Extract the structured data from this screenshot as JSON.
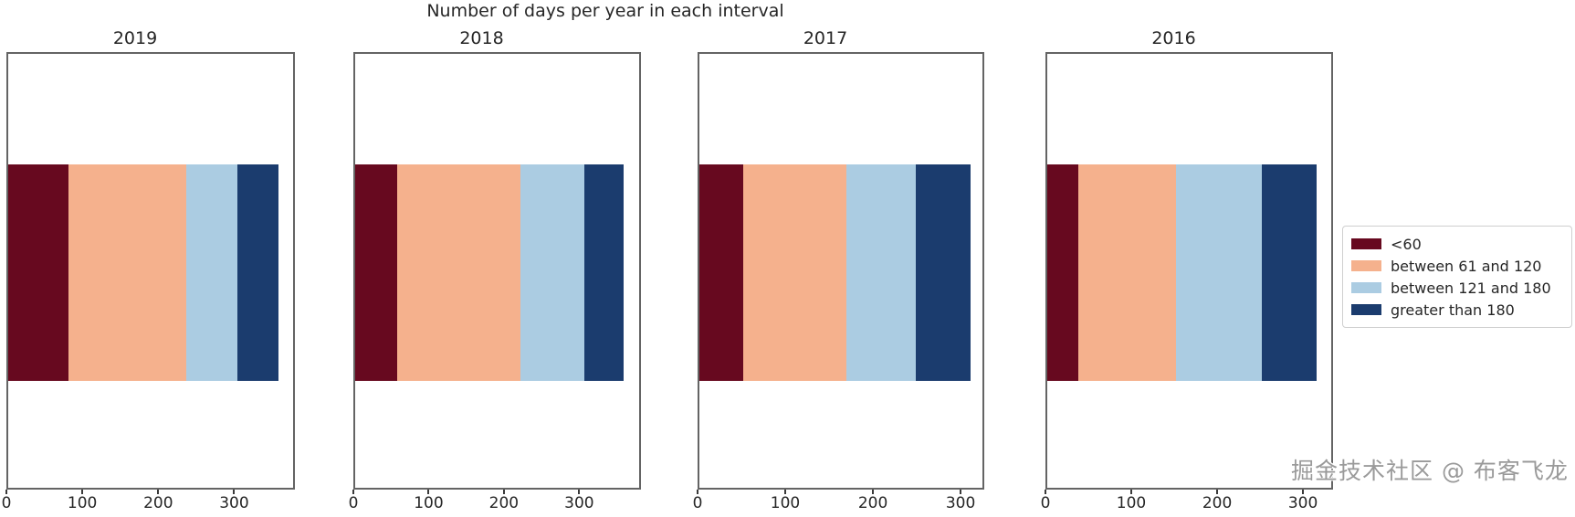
{
  "title": "Number of days per year in each interval",
  "watermark": "掘金技术社区 @ 布客飞龙",
  "colors": {
    "lt60": "#67091f",
    "between_61_120": "#f5b18d",
    "between_121_180": "#abcce2",
    "greater_180": "#1b3c6e",
    "frame": "#646464",
    "text": "#262626",
    "watermark_gray": "#9a9a9a"
  },
  "chart_data": {
    "type": "bar",
    "orientation": "horizontal",
    "stacked": true,
    "grid": false,
    "title": "Number of days per year in each interval",
    "xlabel": "",
    "ylabel": "",
    "legend_position": "right",
    "series_labels": [
      "<60",
      "between 61 and 120",
      "between 121 and 180",
      "greater than 180"
    ],
    "series_colors": [
      "#67091f",
      "#f5b18d",
      "#abcce2",
      "#1b3c6e"
    ],
    "subplots": [
      {
        "title": "2019",
        "xticks": [
          0,
          100,
          200,
          300
        ],
        "xmax": 380,
        "values": [
          80,
          158,
          68,
          54
        ],
        "total": 360
      },
      {
        "title": "2018",
        "xticks": [
          0,
          100,
          200,
          300
        ],
        "xmax": 382,
        "values": [
          56,
          166,
          86,
          53
        ],
        "total": 361
      },
      {
        "title": "2017",
        "xticks": [
          0,
          100,
          200,
          300
        ],
        "xmax": 327,
        "values": [
          51,
          119,
          80,
          63
        ],
        "total": 313
      },
      {
        "title": "2016",
        "xticks": [
          0,
          100,
          200,
          300
        ],
        "xmax": 335,
        "values": [
          37,
          115,
          101,
          65
        ],
        "total": 318
      }
    ]
  }
}
